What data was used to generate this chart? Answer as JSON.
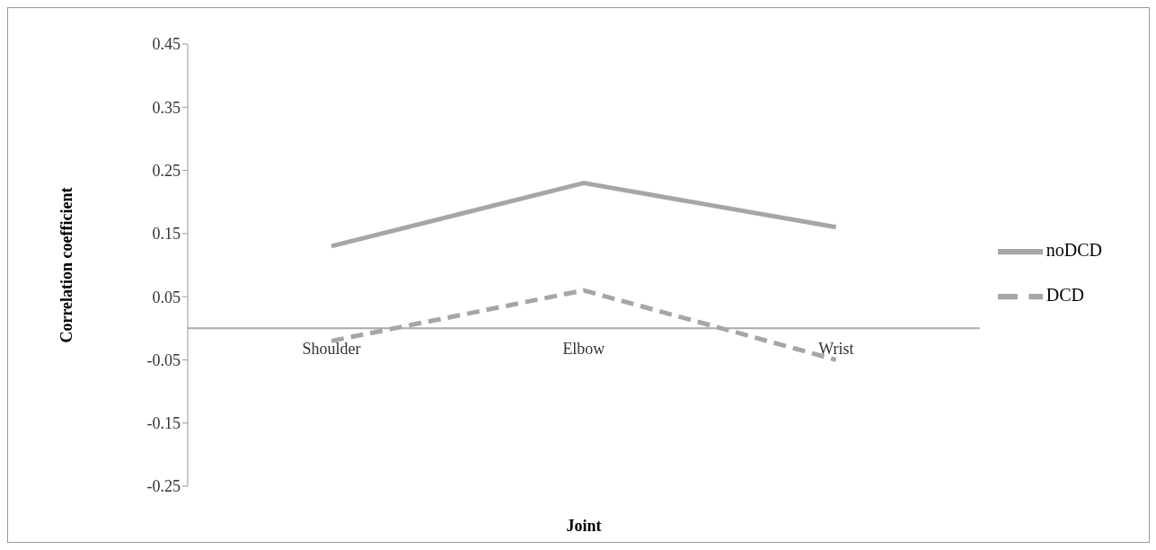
{
  "chart_data": {
    "type": "line",
    "xlabel": "Joint",
    "ylabel": "Correlation coefficient",
    "categories": [
      "Shoulder",
      "Elbow",
      "Wrist"
    ],
    "series": [
      {
        "name": "noDCD",
        "color": "#a6a6a6",
        "values": [
          0.13,
          0.23,
          0.16
        ],
        "line_style": "solid"
      },
      {
        "name": "DCD",
        "color": "#a6a6a6",
        "values": [
          -0.02,
          0.06,
          -0.05
        ],
        "line_style": "dashed"
      }
    ],
    "ylim": [
      -0.25,
      0.45
    ],
    "yticks": [
      -0.25,
      -0.15,
      -0.05,
      0.05,
      0.15,
      0.25,
      0.35,
      0.45
    ],
    "legend": "right",
    "marker": "none"
  }
}
